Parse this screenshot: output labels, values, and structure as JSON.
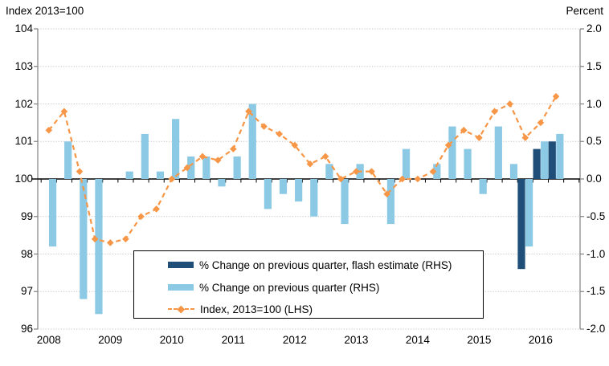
{
  "header": {
    "left_axis_title": "Index 2013=100",
    "right_axis_title": "Percent"
  },
  "legend": {
    "items": [
      {
        "label": "% Change on previous quarter, flash estimate (RHS)",
        "swatch": "bar",
        "color": "#1F4E79"
      },
      {
        "label": "% Change on previous quarter (RHS)",
        "swatch": "bar",
        "color": "#8CC9E4"
      },
      {
        "label": "Index, 2013=100 (LHS)",
        "swatch": "dashed-line-with-diamond-marker",
        "color": "#F79646"
      }
    ]
  },
  "chart_data": {
    "type": "bar",
    "subtype": "combo bar + dashed line with diamond markers, dual axis",
    "title": "",
    "left_axis": {
      "title": "Index 2013=100",
      "ticks": [
        "104",
        "103",
        "102",
        "101",
        "100",
        "99",
        "98",
        "97",
        "96"
      ],
      "range": [
        96,
        104
      ],
      "gridlines": "dotted"
    },
    "right_axis": {
      "title": "Percent",
      "ticks": [
        "2.0",
        "1.5",
        "1.0",
        "0.5",
        "0.0",
        "-0.5",
        "-1.0",
        "-1.5",
        "-2.0"
      ],
      "range": [
        -2.0,
        2.0
      ]
    },
    "x_axis": {
      "year_labels": [
        "2008",
        "2009",
        "2010",
        "2011",
        "2012",
        "2013",
        "2014",
        "2015",
        "2016"
      ],
      "tick_interval": "quarterly"
    },
    "categories": [
      "2008 Q1",
      "2008 Q2",
      "2008 Q3",
      "2008 Q4",
      "2009 Q1",
      "2009 Q2",
      "2009 Q3",
      "2009 Q4",
      "2010 Q1",
      "2010 Q2",
      "2010 Q3",
      "2010 Q4",
      "2011 Q1",
      "2011 Q2",
      "2011 Q3",
      "2011 Q4",
      "2012 Q1",
      "2012 Q2",
      "2012 Q3",
      "2012 Q4",
      "2013 Q1",
      "2013 Q2",
      "2013 Q3",
      "2013 Q4",
      "2014 Q1",
      "2014 Q2",
      "2014 Q3",
      "2014 Q4",
      "2015 Q1",
      "2015 Q2",
      "2015 Q3",
      "2015 Q4",
      "2016 Q1",
      "2016 Q2"
    ],
    "series": [
      {
        "name": "% Change on previous quarter, flash estimate (RHS)",
        "type": "bar",
        "axis": "right",
        "color": "#1F4E79",
        "values": [
          null,
          null,
          null,
          null,
          null,
          null,
          null,
          null,
          null,
          null,
          null,
          null,
          null,
          null,
          null,
          null,
          null,
          null,
          null,
          null,
          null,
          null,
          null,
          null,
          null,
          null,
          null,
          null,
          null,
          null,
          null,
          -1.2,
          0.4,
          0.5
        ]
      },
      {
        "name": "% Change on previous quarter (RHS)",
        "type": "bar",
        "axis": "right",
        "color": "#8CC9E4",
        "values": [
          -0.9,
          0.5,
          -1.6,
          -1.8,
          0.0,
          0.1,
          0.6,
          0.1,
          0.8,
          0.3,
          0.3,
          -0.1,
          0.3,
          1.0,
          -0.4,
          -0.2,
          -0.3,
          -0.5,
          0.2,
          -0.6,
          0.2,
          0.0,
          -0.6,
          0.4,
          0.0,
          0.2,
          0.7,
          0.4,
          -0.2,
          0.7,
          0.2,
          -0.9,
          0.5,
          0.6
        ]
      },
      {
        "name": "Index, 2013=100 (LHS)",
        "type": "line",
        "axis": "left",
        "color": "#F79646",
        "line_style": "dashed",
        "marker": "diamond",
        "values": [
          101.3,
          101.8,
          100.2,
          98.4,
          98.3,
          98.4,
          99.0,
          99.2,
          100.0,
          100.3,
          100.6,
          100.5,
          100.8,
          101.8,
          101.4,
          101.2,
          100.9,
          100.4,
          100.6,
          100.0,
          100.2,
          100.2,
          99.6,
          100.0,
          100.0,
          100.2,
          100.9,
          101.3,
          101.1,
          101.8,
          102.0,
          101.1,
          101.5,
          102.2
        ]
      }
    ],
    "colors": {
      "gridline": "#C3C3C3",
      "axis_line": "#808080",
      "zero_line": "#000000"
    },
    "legend_position": "inside-bottom-center, boxed"
  }
}
